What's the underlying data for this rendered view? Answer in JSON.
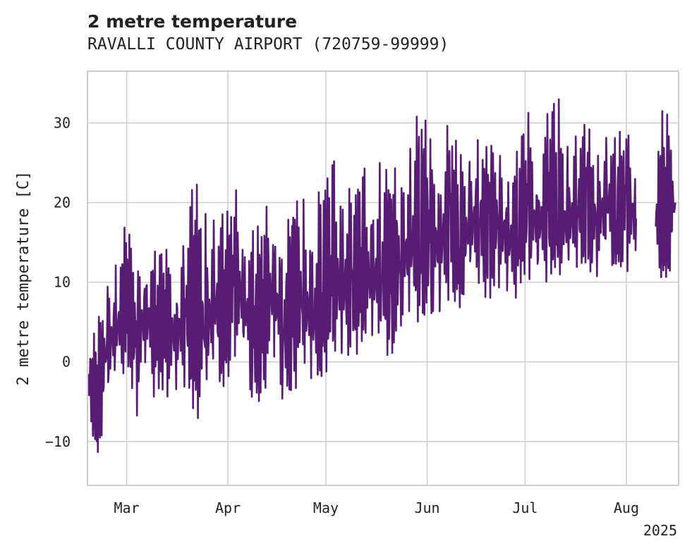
{
  "chart_data": {
    "type": "line",
    "title": "2 metre temperature",
    "subtitle": "RAVALLI COUNTY AIRPORT (720759-99999)",
    "xlabel": "",
    "ylabel": "2 metre temperature [C]",
    "x_range": [
      "2025-02-17",
      "2025-08-17"
    ],
    "ylim": [
      -15.5,
      36.5
    ],
    "yticks": [
      -10,
      0,
      10,
      20,
      30
    ],
    "xticks": [
      {
        "date": "2025-03-01",
        "label": "Mar"
      },
      {
        "date": "2025-04-01",
        "label": "Apr"
      },
      {
        "date": "2025-05-01",
        "label": "May"
      },
      {
        "date": "2025-06-01",
        "label": "Jun"
      },
      {
        "date": "2025-07-01",
        "label": "Jul"
      },
      {
        "date": "2025-08-01",
        "label": "Aug"
      }
    ],
    "year_label": "2025",
    "grid": true,
    "line_color": "#561d73",
    "series": [
      {
        "x": [
          "2025-02-17",
          "2025-02-20",
          "2025-02-23",
          "2025-02-26",
          "2025-03-01",
          "2025-03-04",
          "2025-03-07",
          "2025-03-10",
          "2025-03-13",
          "2025-03-16",
          "2025-03-19",
          "2025-03-22",
          "2025-03-25",
          "2025-03-28",
          "2025-03-31",
          "2025-04-03",
          "2025-04-06",
          "2025-04-09",
          "2025-04-12",
          "2025-04-15",
          "2025-04-18",
          "2025-04-21",
          "2025-04-24",
          "2025-04-27",
          "2025-04-30",
          "2025-05-03",
          "2025-05-06",
          "2025-05-09",
          "2025-05-12",
          "2025-05-15",
          "2025-05-18",
          "2025-05-21",
          "2025-05-24",
          "2025-05-27",
          "2025-05-30",
          "2025-06-02",
          "2025-06-05",
          "2025-06-08",
          "2025-06-11",
          "2025-06-14",
          "2025-06-17",
          "2025-06-20",
          "2025-06-23",
          "2025-06-26",
          "2025-06-29",
          "2025-07-02",
          "2025-07-05",
          "2025-07-08",
          "2025-07-11",
          "2025-07-14",
          "2025-07-17",
          "2025-07-20",
          "2025-07-23",
          "2025-07-26",
          "2025-07-29",
          "2025-08-01",
          "2025-08-04",
          "2025-08-07",
          "2025-08-10",
          "2025-08-13",
          "2025-08-16"
        ],
        "y": [
          -2,
          -5,
          2,
          4,
          8,
          3,
          6,
          4,
          5,
          3,
          6,
          4,
          4,
          7,
          6,
          11,
          7,
          3,
          6,
          9,
          4,
          7,
          8,
          5,
          7,
          9,
          10,
          8,
          12,
          10,
          11,
          9,
          13,
          14,
          16,
          15,
          15,
          17,
          14,
          17,
          18,
          16,
          18,
          15,
          17,
          19,
          17,
          18,
          18,
          17,
          19,
          19,
          18,
          20,
          18,
          20,
          18,
          null,
          17,
          18,
          20
        ],
        "y_min": [
          -6,
          -13,
          -7,
          -4,
          -1,
          -7,
          -4,
          -5,
          -4,
          -7,
          -3,
          -8,
          -6,
          -5,
          -4,
          0,
          -2,
          -8,
          -4,
          -2,
          -7,
          -4,
          -2,
          -6,
          -2,
          0,
          -4,
          0,
          2,
          0,
          2,
          0,
          3,
          4,
          5,
          4,
          3,
          8,
          6,
          8,
          9,
          7,
          9,
          5,
          9,
          10,
          10,
          10,
          11,
          9,
          12,
          11,
          10,
          11,
          11,
          11,
          10,
          null,
          11,
          9,
          12
        ],
        "y_max": [
          1,
          5,
          11,
          14,
          18,
          13,
          17,
          14,
          15,
          13,
          20,
          24,
          20,
          22,
          18,
          23,
          21,
          16,
          20,
          23,
          16,
          21,
          23,
          20,
          24,
          27,
          29,
          21,
          26,
          24,
          28,
          24,
          27,
          30,
          34,
          28,
          28,
          32,
          26,
          28,
          29,
          27,
          30,
          23,
          28,
          32,
          27,
          33,
          34,
          29,
          31,
          30,
          27,
          30,
          28,
          31,
          27,
          null,
          31,
          32,
          29
        ]
      }
    ]
  }
}
